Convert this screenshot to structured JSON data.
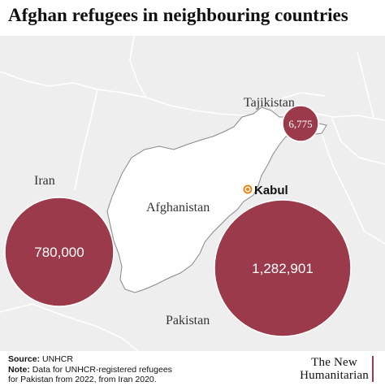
{
  "header": {
    "title": "Afghan refugees in neighbouring countries"
  },
  "colors": {
    "background_land": "#eeeeee",
    "border_lines": "#ffffff",
    "afghanistan_fill": "#ffffff",
    "afghanistan_outline": "#888888",
    "bubble_fill": "#9b3a4a",
    "bubble_stroke": "#ffffff",
    "capital_marker": "#e8861c"
  },
  "map": {
    "country_labels": {
      "iran": "Iran",
      "afghanistan": "Afghanistan",
      "pakistan": "Pakistan",
      "tajikistan": "Tajikistan"
    },
    "capital": {
      "name": "Kabul",
      "icon": "capital-dot-icon"
    },
    "bubbles": [
      {
        "country": "Iran",
        "label": "780,000",
        "value": 780000
      },
      {
        "country": "Pakistan",
        "label": "1,282,901",
        "value": 1282901
      },
      {
        "country": "Tajikistan",
        "label": "6,775",
        "value": 6775
      }
    ]
  },
  "footer": {
    "source_label": "Source:",
    "source_text": "UNHCR",
    "note_label": "Note:",
    "note_line1": "Data for UNHCR-registered refugees",
    "note_line2": "for Pakistan from 2022, from Iran 2020."
  },
  "logo": {
    "line1": "The New",
    "line2": "Humanitarian"
  }
}
